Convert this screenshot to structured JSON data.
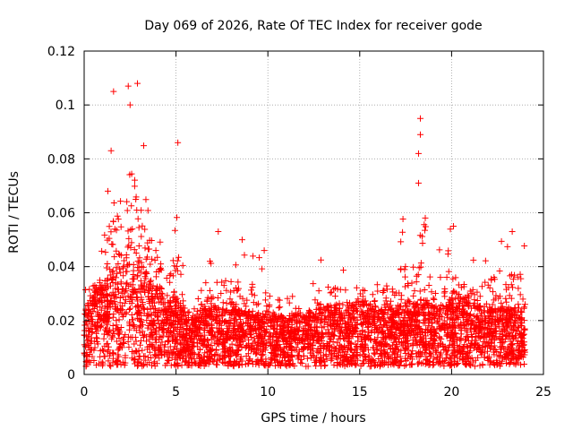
{
  "chart_data": {
    "type": "scatter",
    "title": "Day 069 of 2026, Rate Of TEC Index for receiver gode",
    "xlabel": "GPS time / hours",
    "ylabel": "ROTI / TECUs",
    "xlim": [
      0,
      25
    ],
    "ylim": [
      0,
      0.12
    ],
    "xticks": [
      0,
      5,
      10,
      15,
      20,
      25
    ],
    "xtick_labels": [
      "0",
      "5",
      "10",
      "15",
      "20",
      "25"
    ],
    "yticks": [
      0,
      0.02,
      0.04,
      0.06,
      0.08,
      0.1,
      0.12
    ],
    "ytick_labels": [
      "0",
      "0.02",
      "0.04",
      "0.06",
      "0.08",
      "0.1",
      "0.12"
    ],
    "grid": true,
    "marker": "+",
    "marker_color": "#ff0000",
    "data_coverage_hours": [
      0,
      24
    ],
    "envelope": {
      "x": [
        0,
        0.5,
        1,
        1.5,
        2,
        2.5,
        3,
        3.5,
        4,
        4.5,
        5,
        5.5,
        6,
        7,
        8,
        9,
        10,
        11,
        12,
        13,
        14,
        15,
        16,
        17,
        18,
        18.5,
        19,
        20,
        20.5,
        21,
        22,
        23,
        24
      ],
      "upper": [
        0.03,
        0.045,
        0.05,
        0.09,
        0.095,
        0.108,
        0.1,
        0.075,
        0.07,
        0.04,
        0.086,
        0.03,
        0.025,
        0.053,
        0.05,
        0.047,
        0.05,
        0.032,
        0.03,
        0.047,
        0.045,
        0.045,
        0.04,
        0.055,
        0.065,
        0.095,
        0.045,
        0.055,
        0.048,
        0.043,
        0.05,
        0.055,
        0.05
      ],
      "typical": [
        0.012,
        0.016,
        0.018,
        0.022,
        0.025,
        0.028,
        0.024,
        0.02,
        0.018,
        0.014,
        0.016,
        0.012,
        0.012,
        0.013,
        0.013,
        0.012,
        0.012,
        0.011,
        0.012,
        0.013,
        0.014,
        0.014,
        0.013,
        0.013,
        0.014,
        0.015,
        0.013,
        0.015,
        0.016,
        0.014,
        0.013,
        0.013,
        0.013
      ]
    },
    "notable_points": [
      {
        "x": 1.6,
        "y": 0.105
      },
      {
        "x": 2.4,
        "y": 0.107
      },
      {
        "x": 2.9,
        "y": 0.108
      },
      {
        "x": 2.5,
        "y": 0.1
      },
      {
        "x": 5.1,
        "y": 0.086
      },
      {
        "x": 18.3,
        "y": 0.095
      },
      {
        "x": 18.3,
        "y": 0.089
      },
      {
        "x": 18.2,
        "y": 0.082
      },
      {
        "x": 18.2,
        "y": 0.071
      },
      {
        "x": 7.3,
        "y": 0.053
      },
      {
        "x": 8.6,
        "y": 0.05
      },
      {
        "x": 9.8,
        "y": 0.046
      },
      {
        "x": 20.1,
        "y": 0.055
      },
      {
        "x": 23.3,
        "y": 0.053
      }
    ]
  }
}
